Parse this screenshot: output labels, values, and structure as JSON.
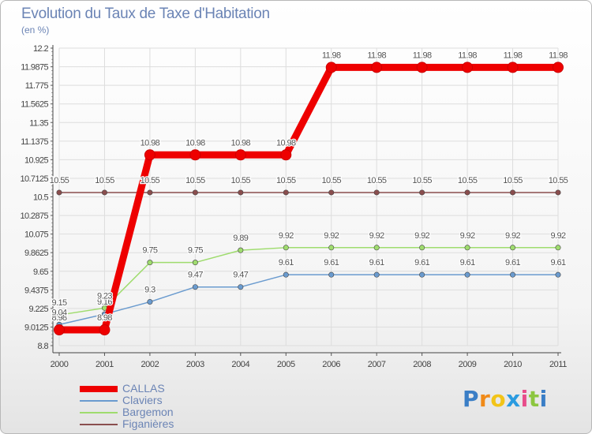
{
  "chart_data": {
    "type": "line",
    "title": "Evolution du Taux de Taxe d'Habitation",
    "ylabel": "(en %)",
    "xlabel": "",
    "categories": [
      "2000",
      "2001",
      "2002",
      "2003",
      "2004",
      "2005",
      "2006",
      "2007",
      "2008",
      "2009",
      "2010",
      "2011"
    ],
    "ylim": [
      8.8,
      12.2
    ],
    "yticks": [
      "8.8",
      "9.0125",
      "9.225",
      "9.4375",
      "9.65",
      "9.8625",
      "10.075",
      "10.2875",
      "10.5",
      "10.7125",
      "10.925",
      "11.1375",
      "11.35",
      "11.5625",
      "11.775",
      "11.9875",
      "12.2"
    ],
    "series": [
      {
        "name": "CALLAS",
        "color": "#ee0000",
        "values": [
          8.98,
          8.98,
          10.98,
          10.98,
          10.98,
          10.98,
          11.98,
          11.98,
          11.98,
          11.98,
          11.98,
          11.98
        ]
      },
      {
        "name": "Claviers",
        "color": "#6a9bcf",
        "values": [
          9.04,
          9.16,
          9.3,
          9.47,
          9.47,
          9.61,
          9.61,
          9.61,
          9.61,
          9.61,
          9.61,
          9.61
        ]
      },
      {
        "name": "Bargemon",
        "color": "#9fdc6e",
        "values": [
          9.15,
          9.23,
          9.75,
          9.75,
          9.89,
          9.92,
          9.92,
          9.92,
          9.92,
          9.92,
          9.92,
          9.92
        ]
      },
      {
        "name": "Figanières",
        "color": "#8a4e4e",
        "values": [
          10.55,
          10.55,
          10.55,
          10.55,
          10.55,
          10.55,
          10.55,
          10.55,
          10.55,
          10.55,
          10.55,
          10.55
        ]
      }
    ],
    "labels": {
      "CALLAS": [
        "8.98",
        "8.98",
        "10.98",
        "10.98",
        "10.98",
        "10.98",
        "11.98",
        "11.98",
        "11.98",
        "11.98",
        "11.98",
        "11.98"
      ],
      "Claviers": [
        "9.04",
        "9.16",
        "9.3",
        "9.47",
        "9.47",
        "9.61",
        "9.61",
        "9.61",
        "9.61",
        "9.61",
        "9.61",
        "9.61"
      ],
      "Bargemon": [
        "9.15",
        "9.23",
        "9.75",
        "9.75",
        "9.89",
        "9.92",
        "9.92",
        "9.92",
        "9.92",
        "9.92",
        "9.92",
        "9.92"
      ],
      "Figanières": [
        "10.55",
        "10.55",
        "10.55",
        "10.55",
        "10.55",
        "10.55",
        "10.55",
        "10.55",
        "10.55",
        "10.55",
        "10.55",
        "10.55"
      ]
    },
    "legend_position": "bottom-left"
  },
  "logo": {
    "letters": [
      "P",
      "r",
      "o",
      "x",
      "i",
      "t",
      "i"
    ],
    "colors": [
      "#3a7ec6",
      "#f08a18",
      "#f2c418",
      "#2a9be0",
      "#e84d8a",
      "#8cc63f",
      "#3a7ec6"
    ]
  }
}
